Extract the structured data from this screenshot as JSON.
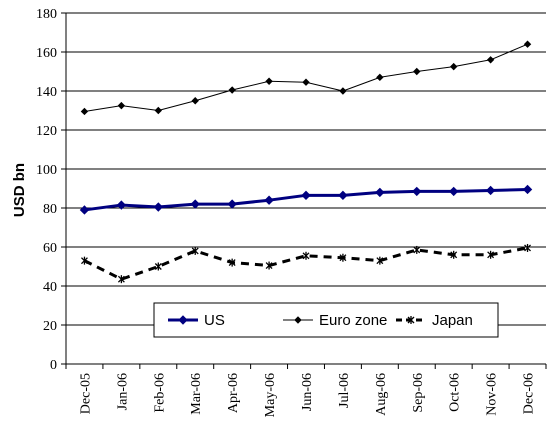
{
  "chart_data": {
    "type": "line",
    "title": "",
    "xlabel": "",
    "ylabel": "USD bn",
    "ylim": [
      0,
      180
    ],
    "yticks": [
      0,
      20,
      40,
      60,
      80,
      100,
      120,
      140,
      160,
      180
    ],
    "grid": "horizontal",
    "legend_position": "bottom-center",
    "categories": [
      "Dec-05",
      "Jan-06",
      "Feb-06",
      "Mar-06",
      "Apr-06",
      "May-06",
      "Jun-06",
      "Jul-06",
      "Aug-06",
      "Sep-06",
      "Oct-06",
      "Nov-06",
      "Dec-06"
    ],
    "series": [
      {
        "name": "US",
        "color": "#000080",
        "style": "thick-solid-diamond",
        "values": [
          79,
          81.5,
          80.5,
          82,
          82,
          84,
          86.5,
          86.5,
          88,
          88.5,
          88.5,
          89,
          89.5
        ]
      },
      {
        "name": "Euro zone",
        "color": "#000000",
        "style": "thin-solid-diamond",
        "values": [
          129.5,
          132.5,
          130,
          135,
          140.5,
          145,
          144.5,
          140,
          147,
          150,
          152.5,
          156,
          164
        ]
      },
      {
        "name": "Japan",
        "color": "#000000",
        "style": "dashed-star",
        "values": [
          53,
          43.5,
          50,
          58,
          52,
          50.5,
          55.5,
          54.5,
          53,
          58.5,
          56,
          56,
          59.5
        ]
      }
    ]
  }
}
